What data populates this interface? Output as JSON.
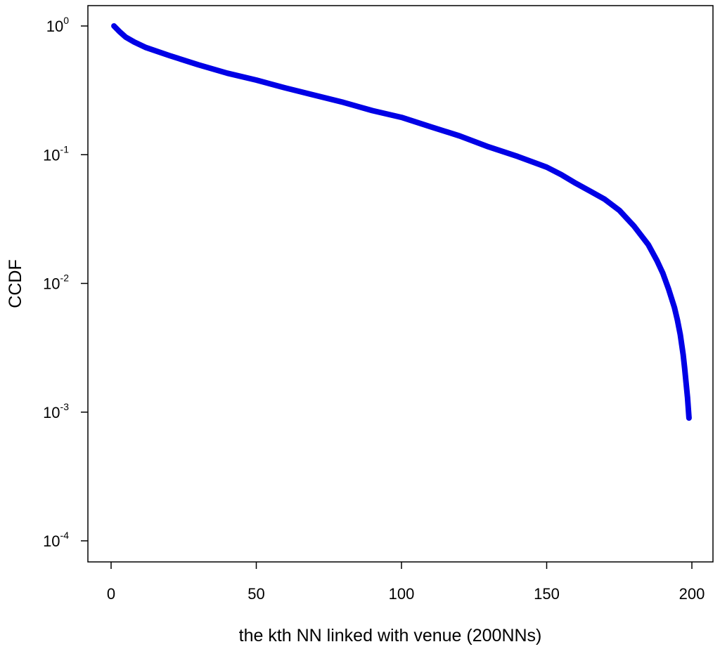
{
  "chart_data": {
    "type": "line",
    "title": "",
    "xlabel": "the kth NN linked with venue (200NNs)",
    "ylabel": "CCDF",
    "xlim": [
      -6,
      206
    ],
    "ylim": [
      0.0001,
      1
    ],
    "yscale": "log",
    "grid": false,
    "x_ticks": [
      0,
      50,
      100,
      150,
      200
    ],
    "x_tick_labels": [
      "0",
      "50",
      "100",
      "150",
      "200"
    ],
    "y_ticks": [
      1,
      0.1,
      0.01,
      0.001,
      0.0001
    ],
    "y_tick_labels": [
      {
        "base": "10",
        "exp": "0"
      },
      {
        "base": "10",
        "exp": "-1"
      },
      {
        "base": "10",
        "exp": "-2"
      },
      {
        "base": "10",
        "exp": "-3"
      },
      {
        "base": "10",
        "exp": "-4"
      }
    ],
    "series": [
      {
        "name": "",
        "color": "#0000e6",
        "x": [
          1,
          3,
          5,
          8,
          12,
          20,
          30,
          40,
          50,
          60,
          70,
          80,
          90,
          100,
          110,
          120,
          130,
          140,
          150,
          155,
          160,
          165,
          170,
          175,
          180,
          185,
          188,
          190,
          192,
          194,
          195,
          196,
          197,
          197.5,
          198,
          198.5,
          199
        ],
        "y": [
          1.0,
          0.9,
          0.82,
          0.75,
          0.68,
          0.59,
          0.5,
          0.43,
          0.38,
          0.33,
          0.29,
          0.255,
          0.22,
          0.195,
          0.165,
          0.14,
          0.115,
          0.097,
          0.08,
          0.07,
          0.06,
          0.052,
          0.045,
          0.037,
          0.028,
          0.02,
          0.015,
          0.012,
          0.009,
          0.0065,
          0.0052,
          0.004,
          0.0028,
          0.0022,
          0.0017,
          0.0013,
          0.0009
        ]
      }
    ]
  }
}
